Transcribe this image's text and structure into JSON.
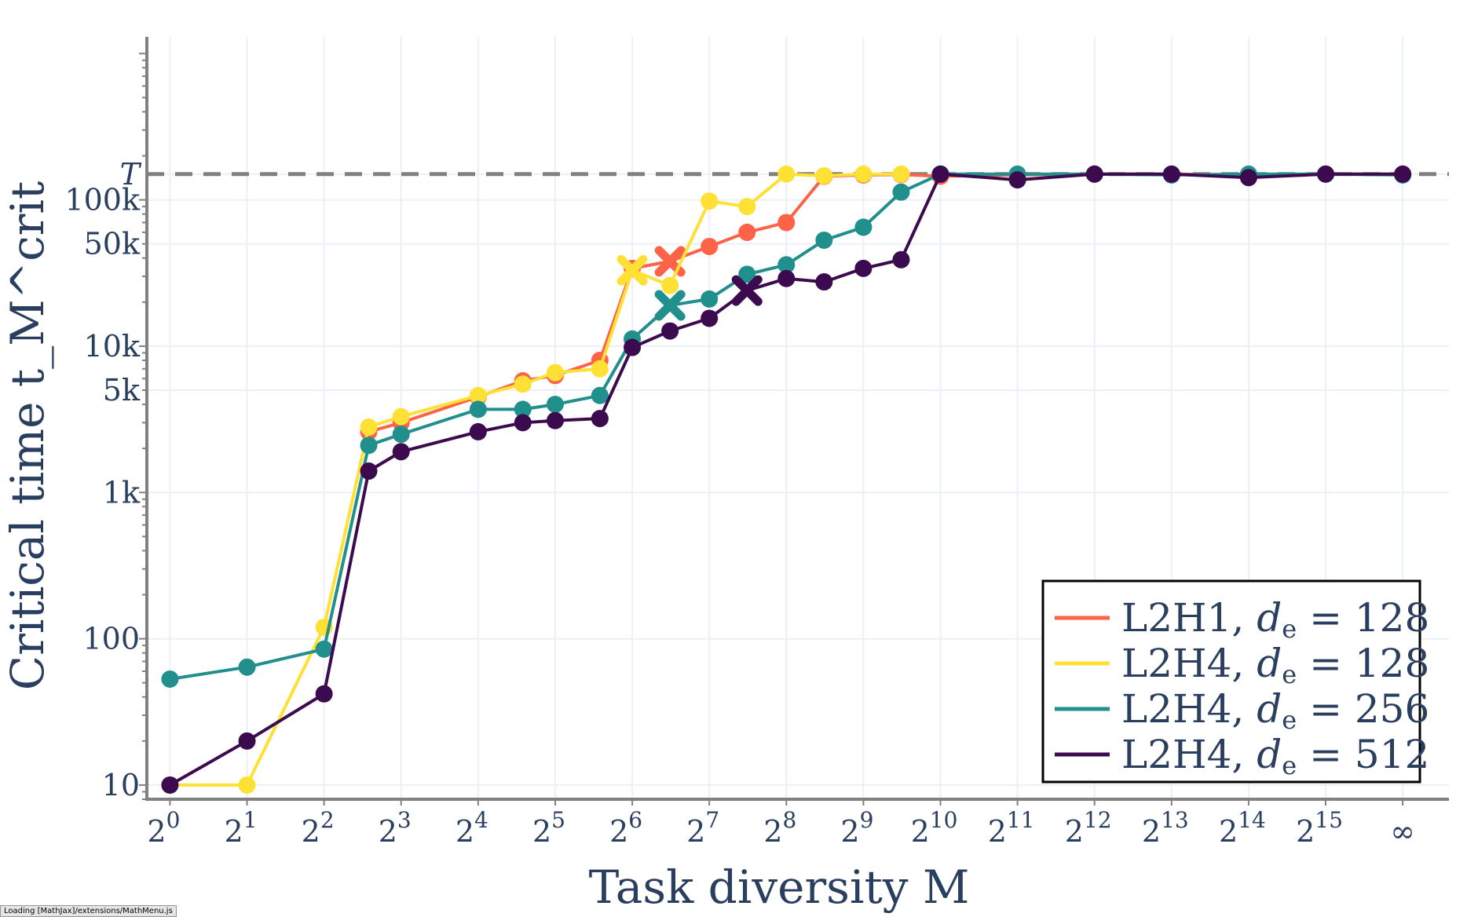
{
  "chart_data": {
    "type": "line",
    "xlabel": "Task diversity M",
    "ylabel": "Critical time t_M^crit",
    "yscale": "log",
    "ylim": [
      8,
      1300000
    ],
    "xlim": [
      -0.3,
      16.6
    ],
    "x_tick_positions": [
      0,
      1,
      2,
      3,
      4,
      5,
      6,
      7,
      8,
      9,
      10,
      11,
      12,
      13,
      14,
      15,
      16
    ],
    "x_tick_labels": [
      {
        "base": "2",
        "exp": "0"
      },
      {
        "base": "2",
        "exp": "1"
      },
      {
        "base": "2",
        "exp": "2"
      },
      {
        "base": "2",
        "exp": "3"
      },
      {
        "base": "2",
        "exp": "4"
      },
      {
        "base": "2",
        "exp": "5"
      },
      {
        "base": "2",
        "exp": "6"
      },
      {
        "base": "2",
        "exp": "7"
      },
      {
        "base": "2",
        "exp": "8"
      },
      {
        "base": "2",
        "exp": "9"
      },
      {
        "base": "2",
        "exp": "10"
      },
      {
        "base": "2",
        "exp": "11"
      },
      {
        "base": "2",
        "exp": "12"
      },
      {
        "base": "2",
        "exp": "13"
      },
      {
        "base": "2",
        "exp": "14"
      },
      {
        "base": "2",
        "exp": "15"
      },
      {
        "base": "∞",
        "exp": ""
      }
    ],
    "y_ticks": [
      {
        "value": 10,
        "label": "10"
      },
      {
        "value": 100,
        "label": "100"
      },
      {
        "value": 1000,
        "label": "1k"
      },
      {
        "value": 5000,
        "label": "5k"
      },
      {
        "value": 10000,
        "label": "10k"
      },
      {
        "value": 50000,
        "label": "50k"
      },
      {
        "value": 100000,
        "label": "100k"
      },
      {
        "value": 150000,
        "label": "T"
      }
    ],
    "reference_line": {
      "label": "T",
      "value": 150000,
      "style": "dashed",
      "color": "#808080"
    },
    "x": [
      0,
      1,
      2,
      2.58,
      3,
      4,
      4.58,
      5,
      5.58,
      6,
      6.49,
      7,
      7.49,
      8,
      8.49,
      9,
      9.49,
      10,
      11,
      12,
      13,
      14,
      15,
      16
    ],
    "series": [
      {
        "name": "L2H1, d_e = 128",
        "legend_prefix": "L2H1, ",
        "legend_var": "d",
        "legend_sub": "e",
        "legend_suffix": " = 128",
        "color": "#ff6347",
        "values": [
          null,
          null,
          null,
          2600,
          3000,
          4500,
          5800,
          6300,
          8000,
          34000,
          38000,
          48000,
          60000,
          70000,
          145000,
          148000,
          149000,
          145000,
          148000,
          150000,
          150000,
          148000,
          150000,
          150000
        ],
        "cross_index": 10
      },
      {
        "name": "L2H4, d_e = 128",
        "legend_prefix": "L2H4, ",
        "legend_var": "d",
        "legend_sub": "e",
        "legend_suffix": " = 128",
        "color": "#ffe135",
        "values": [
          10,
          10,
          120,
          2800,
          3300,
          4600,
          5500,
          6600,
          7000,
          33000,
          26000,
          98000,
          90000,
          150000,
          146000,
          150000,
          150000,
          null,
          null,
          null,
          null,
          null,
          null,
          null
        ],
        "cross_index": 9
      },
      {
        "name": "L2H4, d_e = 256",
        "legend_prefix": "L2H4, ",
        "legend_var": "d",
        "legend_sub": "e",
        "legend_suffix": " = 256",
        "color": "#21908d",
        "values": [
          53,
          64,
          85,
          2100,
          2500,
          3700,
          3700,
          4000,
          4600,
          11200,
          19000,
          21000,
          31000,
          36000,
          53000,
          65000,
          113000,
          150000,
          150000,
          150000,
          148000,
          150000,
          150000,
          148000
        ],
        "cross_index": 10
      },
      {
        "name": "L2H4, d_e = 512",
        "legend_prefix": "L2H4, ",
        "legend_var": "d",
        "legend_sub": "e",
        "legend_suffix": " = 512",
        "color": "#3b0a4f",
        "values": [
          10,
          20,
          42,
          1400,
          1900,
          2600,
          3000,
          3100,
          3200,
          9800,
          12700,
          15500,
          24000,
          29000,
          27500,
          34000,
          39000,
          150000,
          137000,
          150000,
          150000,
          142000,
          150000,
          150000
        ],
        "cross_index": 12
      }
    ],
    "legend_position": "bottom-right"
  },
  "status_bar": {
    "text": "Loading [MathJax]/extensions/MathMenu.js"
  }
}
